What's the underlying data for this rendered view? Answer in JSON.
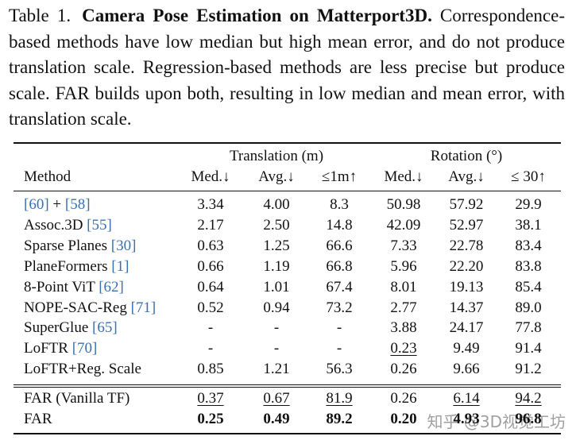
{
  "caption": {
    "label": "Table 1.",
    "title": "Camera Pose Estimation on Matterport3D.",
    "text": "Correspondence-based methods have low median but high mean error, and do not produce translation scale.  Regression-based methods are less precise but produce scale. FAR builds upon both, resulting in low median and mean error, with translation scale."
  },
  "table": {
    "groups": [
      "Translation (m)",
      "Rotation (°)"
    ],
    "columns": [
      "Method",
      "Med.↓",
      "Avg.↓",
      "≤1m↑",
      "Med.↓",
      "Avg.↓",
      "≤ 30↑"
    ],
    "rows": [
      {
        "method": [
          {
            "text": "[60]",
            "cite": true
          },
          {
            "text": " + "
          },
          {
            "text": "[58]",
            "cite": true
          }
        ],
        "cells": [
          {
            "text": "3.34"
          },
          {
            "text": "4.00"
          },
          {
            "text": "8.3"
          },
          {
            "text": "50.98"
          },
          {
            "text": "57.92"
          },
          {
            "text": "29.9"
          }
        ]
      },
      {
        "method": [
          {
            "text": "Assoc.3D "
          },
          {
            "text": "[55]",
            "cite": true
          }
        ],
        "cells": [
          {
            "text": "2.17"
          },
          {
            "text": "2.50"
          },
          {
            "text": "14.8"
          },
          {
            "text": "42.09"
          },
          {
            "text": "52.97"
          },
          {
            "text": "38.1"
          }
        ]
      },
      {
        "method": [
          {
            "text": "Sparse Planes "
          },
          {
            "text": "[30]",
            "cite": true
          }
        ],
        "cells": [
          {
            "text": "0.63"
          },
          {
            "text": "1.25"
          },
          {
            "text": "66.6"
          },
          {
            "text": "7.33"
          },
          {
            "text": "22.78"
          },
          {
            "text": "83.4"
          }
        ]
      },
      {
        "method": [
          {
            "text": "PlaneFormers "
          },
          {
            "text": "[1]",
            "cite": true
          }
        ],
        "cells": [
          {
            "text": "0.66"
          },
          {
            "text": "1.19"
          },
          {
            "text": "66.8"
          },
          {
            "text": "5.96"
          },
          {
            "text": "22.20"
          },
          {
            "text": "83.8"
          }
        ]
      },
      {
        "method": [
          {
            "text": "8-Point ViT "
          },
          {
            "text": "[62]",
            "cite": true
          }
        ],
        "cells": [
          {
            "text": "0.64"
          },
          {
            "text": "1.01"
          },
          {
            "text": "67.4"
          },
          {
            "text": "8.01"
          },
          {
            "text": "19.13"
          },
          {
            "text": "85.4"
          }
        ]
      },
      {
        "method": [
          {
            "text": "NOPE-SAC-Reg "
          },
          {
            "text": "[71]",
            "cite": true
          }
        ],
        "cells": [
          {
            "text": "0.52"
          },
          {
            "text": "0.94"
          },
          {
            "text": "73.2"
          },
          {
            "text": "2.77"
          },
          {
            "text": "14.37"
          },
          {
            "text": "89.0"
          }
        ]
      },
      {
        "method": [
          {
            "text": "SuperGlue "
          },
          {
            "text": "[65]",
            "cite": true
          }
        ],
        "cells": [
          {
            "text": "-"
          },
          {
            "text": "-"
          },
          {
            "text": "-"
          },
          {
            "text": "3.88"
          },
          {
            "text": "24.17"
          },
          {
            "text": "77.8"
          }
        ]
      },
      {
        "method": [
          {
            "text": "LoFTR "
          },
          {
            "text": "[70]",
            "cite": true
          }
        ],
        "cells": [
          {
            "text": "-"
          },
          {
            "text": "-"
          },
          {
            "text": "-"
          },
          {
            "text": "0.23",
            "underline": true
          },
          {
            "text": "9.49"
          },
          {
            "text": "91.4"
          }
        ]
      },
      {
        "method": [
          {
            "text": "LoFTR+Reg. Scale"
          }
        ],
        "cells": [
          {
            "text": "0.85"
          },
          {
            "text": "1.21"
          },
          {
            "text": "56.3"
          },
          {
            "text": "0.26"
          },
          {
            "text": "9.66"
          },
          {
            "text": "91.2"
          }
        ]
      }
    ],
    "final_rows": [
      {
        "method": [
          {
            "text": "FAR (Vanilla TF)"
          }
        ],
        "cells": [
          {
            "text": "0.37",
            "underline": true
          },
          {
            "text": "0.67",
            "underline": true
          },
          {
            "text": "81.9",
            "underline": true
          },
          {
            "text": "0.26"
          },
          {
            "text": "6.14",
            "underline": true
          },
          {
            "text": "94.2",
            "underline": true
          }
        ]
      },
      {
        "method": [
          {
            "text": "FAR"
          }
        ],
        "cells": [
          {
            "text": "0.25",
            "bold": true
          },
          {
            "text": "0.49",
            "bold": true
          },
          {
            "text": "89.2",
            "bold": true
          },
          {
            "text": "0.20",
            "bold": true
          },
          {
            "text": "4.93",
            "bold": true
          },
          {
            "text": "96.8",
            "bold": true
          }
        ]
      }
    ]
  },
  "watermark": "知乎 @3D视觉工坊"
}
